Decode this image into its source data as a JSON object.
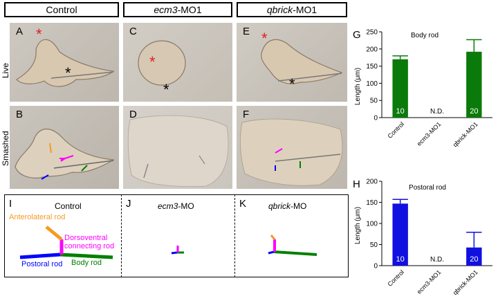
{
  "columns": [
    {
      "label": "Control",
      "italic": "",
      "suffix": ""
    },
    {
      "label": "",
      "italic": "ecm3",
      "suffix": "-MO1"
    },
    {
      "label": "",
      "italic": "qbrick",
      "suffix": "-MO1"
    }
  ],
  "row_labels": {
    "live": "Live",
    "smashed": "Smashed"
  },
  "panel_letters": {
    "A": "A",
    "B": "B",
    "C": "C",
    "D": "D",
    "E": "E",
    "F": "F",
    "G": "G",
    "H": "H",
    "I": "I",
    "J": "J",
    "K": "K"
  },
  "asterisk": "*",
  "schematic": {
    "I": {
      "title": "Control",
      "labels": {
        "anterolateral": "Anterolateral rod",
        "dorsoventral_1": "Dorsoventral",
        "dorsoventral_2": "connecting rod",
        "postoral": "Postoral rod",
        "body": "Body rod"
      }
    },
    "J": {
      "title_italic": "ecm3",
      "title_suffix": "-MO"
    },
    "K": {
      "title_italic": "qbrick",
      "title_suffix": "-MO"
    }
  },
  "colors": {
    "anterolateral": "#f59a23",
    "dorsoventral": "#ff00ff",
    "postoral": "#0000ff",
    "body": "#008000",
    "bar_G": "#0a7a0a",
    "bar_H": "#1010e0",
    "asterisk": "#e02020"
  },
  "chart_data": [
    {
      "type": "bar",
      "title": "Body rod",
      "ylabel": "Length (μm)",
      "ylim": [
        0,
        250
      ],
      "yticks": [
        0,
        50,
        100,
        150,
        200,
        250
      ],
      "categories": [
        "Control",
        "ecm3-MO1",
        "qbrick-MO1"
      ],
      "values": [
        170,
        null,
        192
      ],
      "errors": [
        10,
        null,
        35
      ],
      "n_labels": [
        "10",
        "N.D.",
        "20"
      ]
    },
    {
      "type": "bar",
      "title": "Postoral rod",
      "ylabel": "Length (μm)",
      "ylim": [
        0,
        200
      ],
      "yticks": [
        0,
        50,
        100,
        150,
        200
      ],
      "categories": [
        "Control",
        "ecm3-MO1",
        "qbrick-MO1"
      ],
      "values": [
        147,
        null,
        43
      ],
      "errors": [
        10,
        null,
        36
      ],
      "n_labels": [
        "10",
        "N.D.",
        "20"
      ]
    }
  ]
}
